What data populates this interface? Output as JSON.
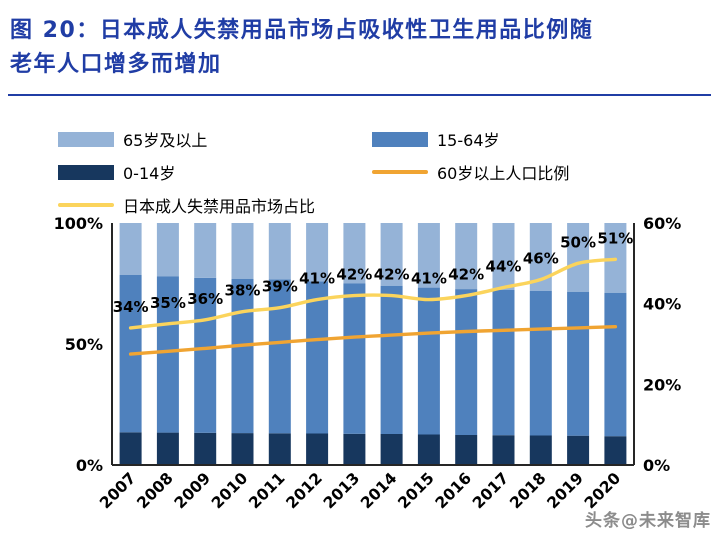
{
  "figure": {
    "title_line1": "图 20：日本成人失禁用品市场占吸收性卫生用品比例随",
    "title_line2": "老年人口增多而增加"
  },
  "watermark": "头条@未来智库",
  "chart_data": {
    "type": "bar",
    "subtype": "stacked-bar-with-lines",
    "title": "日本成人失禁用品市场占吸收性卫生用品比例随老年人口增多而增加",
    "x_labels": [
      "2007",
      "2008",
      "2009",
      "2010",
      "2011",
      "2012",
      "2013",
      "2014",
      "2015",
      "2016",
      "2017",
      "2018",
      "2019",
      "2020"
    ],
    "bar_series": [
      {
        "name": "0-14岁",
        "color": "#17375E",
        "axis": "left",
        "values": [
          13.5,
          13.4,
          13.3,
          13.2,
          13.1,
          13.0,
          12.9,
          12.8,
          12.6,
          12.4,
          12.3,
          12.2,
          12.1,
          11.9
        ]
      },
      {
        "name": "15-64岁",
        "color": "#4F81BD",
        "axis": "left",
        "values": [
          65.0,
          64.5,
          64.0,
          63.8,
          63.6,
          62.9,
          62.1,
          61.3,
          60.7,
          60.3,
          60.0,
          59.7,
          59.5,
          59.3
        ]
      },
      {
        "name": "65岁及以上",
        "color": "#95B3D7",
        "axis": "left",
        "values": [
          21.5,
          22.1,
          22.7,
          23.0,
          23.3,
          24.1,
          25.0,
          25.9,
          26.7,
          27.3,
          27.7,
          28.1,
          28.4,
          28.8
        ]
      }
    ],
    "line_series": [
      {
        "name": "60岁以上人口比例",
        "color": "#F0A432",
        "axis": "right",
        "show_labels": false,
        "values": [
          27.5,
          28.2,
          28.9,
          29.7,
          30.4,
          31.1,
          31.7,
          32.2,
          32.7,
          33.1,
          33.4,
          33.7,
          34.0,
          34.3
        ]
      },
      {
        "name": "日本成人失禁用品市场占比",
        "color": "#FBD45C",
        "axis": "right",
        "show_labels": true,
        "values": [
          34,
          35,
          36,
          38,
          39,
          41,
          42,
          42,
          41,
          42,
          44,
          46,
          50,
          51
        ]
      }
    ],
    "left_axis": {
      "min": 0,
      "max": 100,
      "ticks": [
        {
          "value": 100,
          "label": "100%"
        },
        {
          "value": 50,
          "label": "50%"
        },
        {
          "value": 0,
          "label": "0%"
        }
      ]
    },
    "right_axis": {
      "min": 0,
      "max": 60,
      "ticks": [
        {
          "value": 60,
          "label": "60%"
        },
        {
          "value": 40,
          "label": "40%"
        },
        {
          "value": 20,
          "label": "20%"
        },
        {
          "value": 0,
          "label": "0%"
        }
      ]
    },
    "legend": [
      {
        "label": "65岁及以上",
        "color": "#95B3D7",
        "type": "bar"
      },
      {
        "label": "15-64岁",
        "color": "#4F81BD",
        "type": "bar"
      },
      {
        "label": "0-14岁",
        "color": "#17375E",
        "type": "bar"
      },
      {
        "label": "60岁以上人口比例",
        "color": "#F0A432",
        "type": "line"
      },
      {
        "label": "日本成人失禁用品市场占比",
        "color": "#FBD45C",
        "type": "line"
      }
    ],
    "grid": false,
    "legend_position": "top"
  }
}
